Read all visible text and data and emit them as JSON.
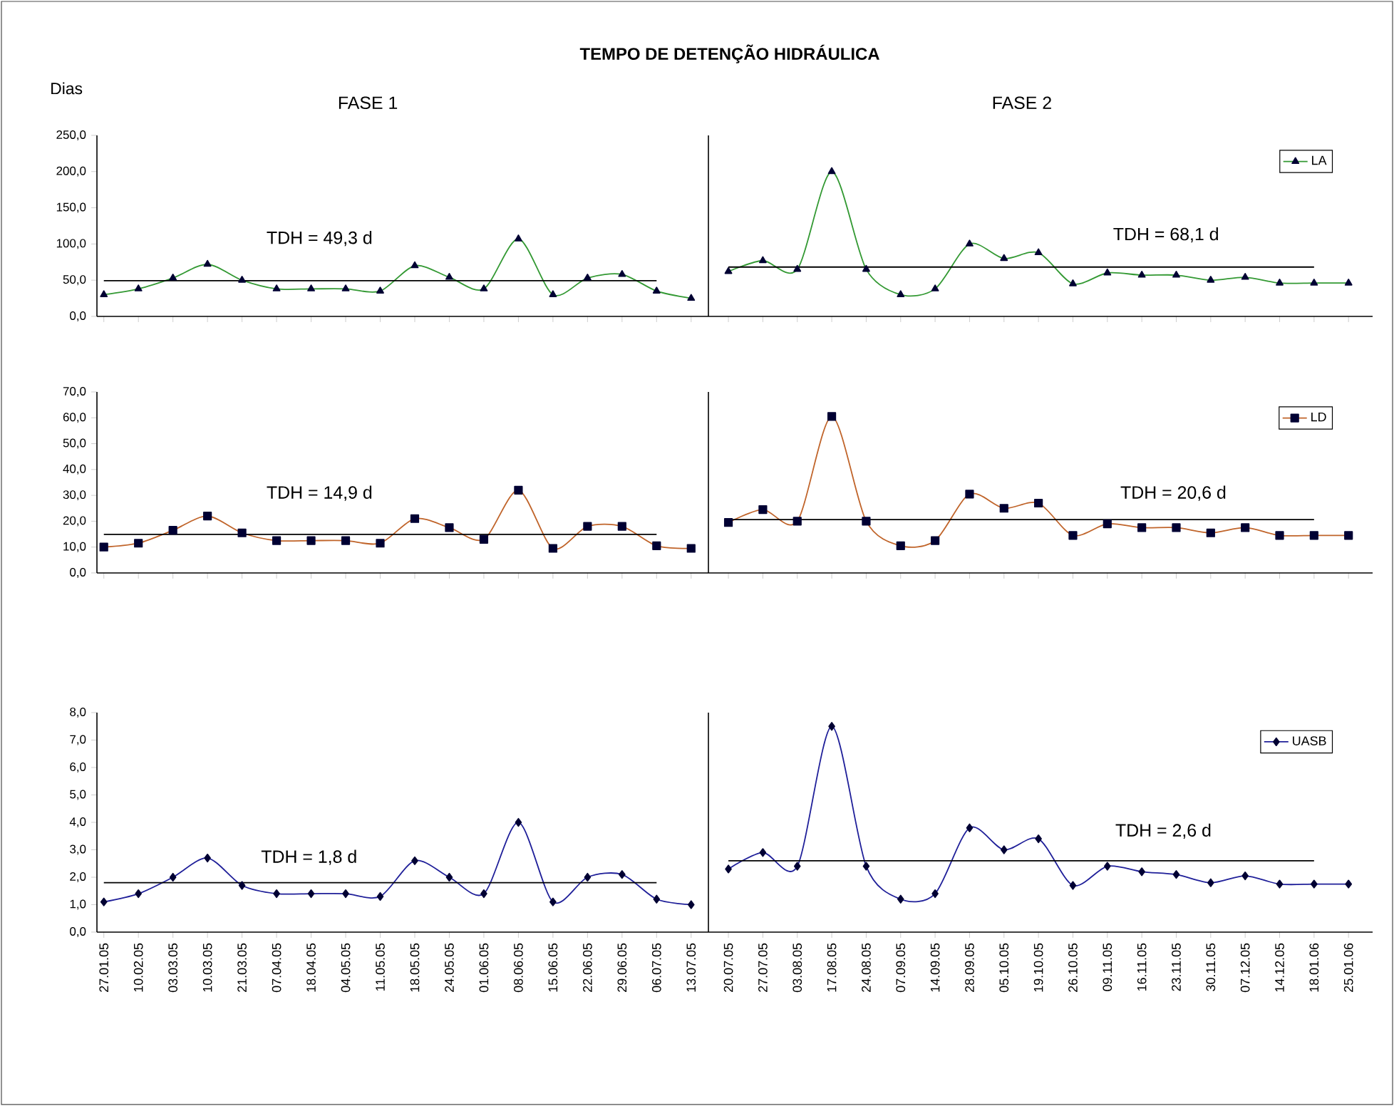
{
  "chart_data": [
    {
      "type": "line",
      "title": "TEMPO DE DETENÇÃO HIDRÁULICA",
      "ylabel": "Dias",
      "tick_labels": "y",
      "categories": [
        "27.01.05",
        "10.02.05",
        "03.03.05",
        "10.03.05",
        "21.03.05",
        "07.04.05",
        "18.04.05",
        "04.05.05",
        "11.05.05",
        "18.05.05",
        "24.05.05",
        "01.06.05",
        "08.06.05",
        "15.06.05",
        "22.06.05",
        "29.06.05",
        "06.07.05",
        "13.07.05"
      ],
      "ylim": [
        0,
        250
      ],
      "yticks": [
        {
          "value": 0,
          "label": "0,0"
        },
        {
          "value": 50,
          "label": "50,0"
        },
        {
          "value": 100,
          "label": "100,0"
        },
        {
          "value": 150,
          "label": "150,0"
        },
        {
          "value": 200,
          "label": "200,0"
        },
        {
          "value": 250,
          "label": "250,0"
        }
      ],
      "series": [
        {
          "color": "#339933",
          "marker": "triangle",
          "values": [
            30,
            38,
            53,
            72,
            50,
            38,
            38,
            38,
            35,
            70,
            54,
            38,
            107,
            30,
            53,
            58,
            35,
            25
          ]
        },
        {
          "type": "line",
          "color": "#000000",
          "marker": "none",
          "values": [
            49.3,
            49.3,
            49.3,
            49.3,
            49.3,
            49.3,
            49.3,
            49.3,
            49.3,
            49.3,
            49.3,
            49.3,
            49.3,
            49.3,
            49.3,
            49.3,
            49.3,
            null
          ]
        }
      ],
      "annotations": [
        "FASE 1",
        "TDH = 49,3 d"
      ]
    },
    {
      "type": "line",
      "legend": "top right",
      "tick_labels": false,
      "categories": [
        "20.07.05",
        "27.07.05",
        "03.08.05",
        "17.08.05",
        "24.08.05",
        "07.09.05",
        "14.09.05",
        "28.09.05",
        "05.10.05",
        "19.10.05",
        "26.10.05",
        "09.11.05",
        "16.11.05",
        "23.11.05",
        "30.11.05",
        "07.12.05",
        "14.12.05",
        "18.01.06",
        "25.01.06"
      ],
      "ylim": [
        0,
        250
      ],
      "series": [
        {
          "name": "LA",
          "color": "#339933",
          "marker": "triangle",
          "values": [
            62,
            77,
            65,
            200,
            65,
            30,
            38,
            100,
            80,
            88,
            45,
            60,
            57,
            57,
            50,
            54,
            46,
            46,
            46
          ]
        },
        {
          "type": "line",
          "color": "#000000",
          "marker": "none",
          "values": [
            68.1,
            68.1,
            68.1,
            68.1,
            68.1,
            68.1,
            68.1,
            68.1,
            68.1,
            68.1,
            68.1,
            68.1,
            68.1,
            68.1,
            68.1,
            68.1,
            68.1,
            68.1,
            null
          ]
        }
      ],
      "annotations": [
        "FASE 2",
        "TDH = 68,1 d"
      ]
    },
    {
      "type": "line",
      "tick_labels": "y",
      "categories": [
        "27.01.05",
        "10.02.05",
        "03.03.05",
        "10.03.05",
        "21.03.05",
        "07.04.05",
        "18.04.05",
        "04.05.05",
        "11.05.05",
        "18.05.05",
        "24.05.05",
        "01.06.05",
        "08.06.05",
        "15.06.05",
        "22.06.05",
        "29.06.05",
        "06.07.05",
        "13.07.05"
      ],
      "ylim": [
        0,
        70
      ],
      "yticks": [
        {
          "value": 0,
          "label": "0,0"
        },
        {
          "value": 10,
          "label": "10,0"
        },
        {
          "value": 20,
          "label": "20,0"
        },
        {
          "value": 30,
          "label": "30,0"
        },
        {
          "value": 40,
          "label": "40,0"
        },
        {
          "value": 50,
          "label": "50,0"
        },
        {
          "value": 60,
          "label": "60,0"
        },
        {
          "value": 70,
          "label": "70,0"
        }
      ],
      "series": [
        {
          "color": "#c0642a",
          "marker": "square",
          "values": [
            10,
            11.5,
            16.5,
            22,
            15.5,
            12.5,
            12.5,
            12.5,
            11.5,
            21,
            17.5,
            13,
            32,
            9.5,
            18,
            18,
            10.5,
            9.5
          ]
        },
        {
          "type": "line",
          "color": "#000000",
          "marker": "none",
          "values": [
            14.9,
            14.9,
            14.9,
            14.9,
            14.9,
            14.9,
            14.9,
            14.9,
            14.9,
            14.9,
            14.9,
            14.9,
            14.9,
            14.9,
            14.9,
            14.9,
            14.9,
            null
          ]
        }
      ],
      "annotations": [
        "TDH = 14,9 d"
      ]
    },
    {
      "type": "line",
      "legend": "top right",
      "tick_labels": false,
      "categories": [
        "20.07.05",
        "27.07.05",
        "03.08.05",
        "17.08.05",
        "24.08.05",
        "07.09.05",
        "14.09.05",
        "28.09.05",
        "05.10.05",
        "19.10.05",
        "26.10.05",
        "09.11.05",
        "16.11.05",
        "23.11.05",
        "30.11.05",
        "07.12.05",
        "14.12.05",
        "18.01.06",
        "25.01.06"
      ],
      "ylim": [
        0,
        70
      ],
      "series": [
        {
          "name": "LD",
          "color": "#c0642a",
          "marker": "square",
          "values": [
            19.5,
            24.5,
            20,
            60.5,
            20,
            10.5,
            12.5,
            30.5,
            25,
            27,
            14.5,
            19,
            17.5,
            17.5,
            15.5,
            17.5,
            14.5,
            14.5,
            14.5
          ]
        },
        {
          "type": "line",
          "color": "#000000",
          "marker": "none",
          "values": [
            20.6,
            20.6,
            20.6,
            20.6,
            20.6,
            20.6,
            20.6,
            20.6,
            20.6,
            20.6,
            20.6,
            20.6,
            20.6,
            20.6,
            20.6,
            20.6,
            20.6,
            20.6,
            null
          ]
        }
      ],
      "annotations": [
        "TDH = 20,6 d"
      ]
    },
    {
      "type": "line",
      "categories": [
        "27.01.05",
        "10.02.05",
        "03.03.05",
        "10.03.05",
        "21.03.05",
        "07.04.05",
        "18.04.05",
        "04.05.05",
        "11.05.05",
        "18.05.05",
        "24.05.05",
        "01.06.05",
        "08.06.05",
        "15.06.05",
        "22.06.05",
        "29.06.05",
        "06.07.05",
        "13.07.05"
      ],
      "ylim": [
        0,
        8
      ],
      "yticks": [
        {
          "value": 0,
          "label": "0,0"
        },
        {
          "value": 1,
          "label": "1,0"
        },
        {
          "value": 2,
          "label": "2,0"
        },
        {
          "value": 3,
          "label": "3,0"
        },
        {
          "value": 4,
          "label": "4,0"
        },
        {
          "value": 5,
          "label": "5,0"
        },
        {
          "value": 6,
          "label": "6,0"
        },
        {
          "value": 7,
          "label": "7,0"
        },
        {
          "value": 8,
          "label": "8,0"
        }
      ],
      "series": [
        {
          "color": "#1f1f99",
          "marker": "diamond",
          "values": [
            1.1,
            1.4,
            2.0,
            2.7,
            1.7,
            1.4,
            1.4,
            1.4,
            1.3,
            2.6,
            2.0,
            1.4,
            4.0,
            1.1,
            2.0,
            2.1,
            1.2,
            1.0
          ]
        },
        {
          "type": "line",
          "color": "#000000",
          "marker": "none",
          "values": [
            1.8,
            1.8,
            1.8,
            1.8,
            1.8,
            1.8,
            1.8,
            1.8,
            1.8,
            1.8,
            1.8,
            1.8,
            1.8,
            1.8,
            1.8,
            1.8,
            1.8,
            null
          ]
        }
      ],
      "annotations": [
        "TDH = 1,8 d"
      ]
    },
    {
      "type": "line",
      "legend": "top right",
      "tick_labels": "x",
      "categories": [
        "20.07.05",
        "27.07.05",
        "03.08.05",
        "17.08.05",
        "24.08.05",
        "07.09.05",
        "14.09.05",
        "28.09.05",
        "05.10.05",
        "19.10.05",
        "26.10.05",
        "09.11.05",
        "16.11.05",
        "23.11.05",
        "30.11.05",
        "07.12.05",
        "14.12.05",
        "18.01.06",
        "25.01.06"
      ],
      "ylim": [
        0,
        8
      ],
      "series": [
        {
          "name": "UASB",
          "color": "#1f1f99",
          "marker": "diamond",
          "values": [
            2.3,
            2.9,
            2.4,
            7.5,
            2.4,
            1.2,
            1.4,
            3.8,
            3.0,
            3.4,
            1.7,
            2.4,
            2.2,
            2.1,
            1.8,
            2.05,
            1.75,
            1.75,
            1.75
          ]
        },
        {
          "type": "line",
          "color": "#000000",
          "marker": "none",
          "values": [
            2.6,
            2.6,
            2.6,
            2.6,
            2.6,
            2.6,
            2.6,
            2.6,
            2.6,
            2.6,
            2.6,
            2.6,
            2.6,
            2.6,
            2.6,
            2.6,
            2.6,
            2.6,
            null
          ]
        }
      ],
      "annotations": [
        "TDH = 2,6 d"
      ]
    }
  ]
}
